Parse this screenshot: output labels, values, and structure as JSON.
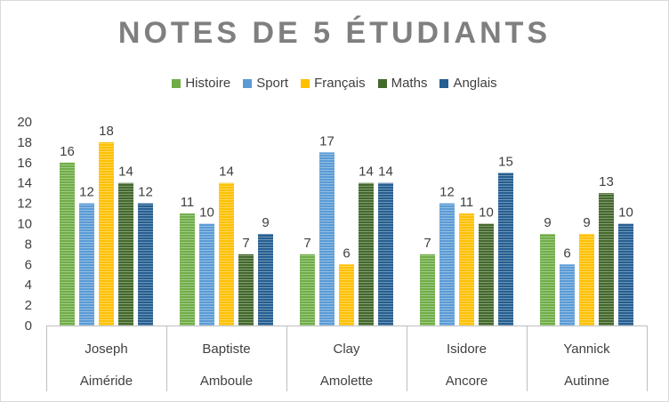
{
  "chart_data": {
    "type": "bar",
    "title": "NOTES DE 5 ÉTUDIANTS",
    "categories": [
      {
        "first": "Joseph",
        "last": "Aiméride"
      },
      {
        "first": "Baptiste",
        "last": "Amboule"
      },
      {
        "first": "Clay",
        "last": "Amolette"
      },
      {
        "first": "Isidore",
        "last": "Ancore"
      },
      {
        "first": "Yannick",
        "last": "Autinne"
      }
    ],
    "series": [
      {
        "name": "Histoire",
        "color": "#70ad47",
        "values": [
          16,
          11,
          7,
          7,
          9
        ]
      },
      {
        "name": "Sport",
        "color": "#5b9bd5",
        "values": [
          12,
          10,
          17,
          12,
          6
        ]
      },
      {
        "name": "Français",
        "color": "#ffc000",
        "values": [
          18,
          14,
          6,
          11,
          9
        ]
      },
      {
        "name": "Maths",
        "color": "#43682b",
        "values": [
          14,
          7,
          14,
          10,
          13
        ]
      },
      {
        "name": "Anglais",
        "color": "#255e91",
        "values": [
          12,
          9,
          14,
          15,
          10
        ]
      }
    ],
    "ylim": [
      0,
      20
    ],
    "yticks": [
      0,
      2,
      4,
      6,
      8,
      10,
      12,
      14,
      16,
      18,
      20
    ],
    "legend_position": "top",
    "gridlines": false,
    "data_labels": true
  }
}
